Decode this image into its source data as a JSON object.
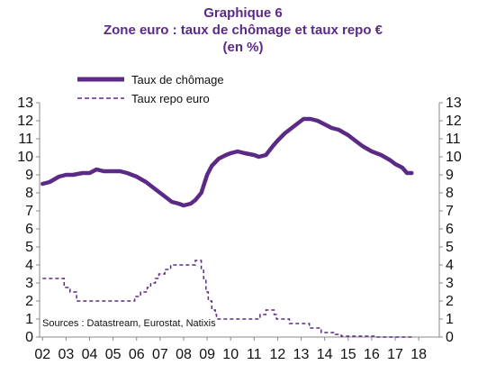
{
  "chart_data": {
    "type": "line",
    "title": "Graphique 6",
    "subtitle": "Zone euro : taux de chômage et taux repo €",
    "unit_note": "(en %)",
    "source": "Sources : Datastream, Eurostat, Natixis",
    "x_ticks": [
      "02",
      "03",
      "04",
      "05",
      "06",
      "07",
      "08",
      "09",
      "10",
      "11",
      "12",
      "13",
      "14",
      "15",
      "16",
      "17",
      "18"
    ],
    "y_ticks": [
      "0",
      "1",
      "2",
      "3",
      "4",
      "5",
      "6",
      "7",
      "8",
      "9",
      "10",
      "11",
      "12",
      "13"
    ],
    "ylim": [
      0,
      13
    ],
    "legend_position": "top-left",
    "grid": false,
    "colors": {
      "title": "#5b2a86",
      "series": "#5b2a86",
      "axis": "#888888"
    },
    "series": [
      {
        "name": "Taux de chômage",
        "style": "solid",
        "points": [
          [
            2002.0,
            8.5
          ],
          [
            2002.3,
            8.6
          ],
          [
            2002.7,
            8.9
          ],
          [
            2003.0,
            9.0
          ],
          [
            2003.3,
            9.0
          ],
          [
            2003.7,
            9.1
          ],
          [
            2004.0,
            9.1
          ],
          [
            2004.3,
            9.3
          ],
          [
            2004.6,
            9.2
          ],
          [
            2005.0,
            9.2
          ],
          [
            2005.3,
            9.2
          ],
          [
            2005.6,
            9.1
          ],
          [
            2006.0,
            8.9
          ],
          [
            2006.4,
            8.6
          ],
          [
            2006.8,
            8.2
          ],
          [
            2007.2,
            7.8
          ],
          [
            2007.5,
            7.5
          ],
          [
            2007.8,
            7.4
          ],
          [
            2008.0,
            7.3
          ],
          [
            2008.3,
            7.4
          ],
          [
            2008.5,
            7.6
          ],
          [
            2008.75,
            8.0
          ],
          [
            2009.0,
            9.0
          ],
          [
            2009.2,
            9.5
          ],
          [
            2009.5,
            9.9
          ],
          [
            2009.8,
            10.1
          ],
          [
            2010.0,
            10.2
          ],
          [
            2010.3,
            10.3
          ],
          [
            2010.6,
            10.2
          ],
          [
            2011.0,
            10.1
          ],
          [
            2011.2,
            10.0
          ],
          [
            2011.5,
            10.1
          ],
          [
            2011.8,
            10.6
          ],
          [
            2012.0,
            10.9
          ],
          [
            2012.3,
            11.3
          ],
          [
            2012.6,
            11.6
          ],
          [
            2012.9,
            11.9
          ],
          [
            2013.1,
            12.1
          ],
          [
            2013.4,
            12.1
          ],
          [
            2013.7,
            12.0
          ],
          [
            2014.0,
            11.8
          ],
          [
            2014.3,
            11.6
          ],
          [
            2014.6,
            11.5
          ],
          [
            2015.0,
            11.2
          ],
          [
            2015.3,
            10.9
          ],
          [
            2015.6,
            10.6
          ],
          [
            2016.0,
            10.3
          ],
          [
            2016.4,
            10.1
          ],
          [
            2016.8,
            9.8
          ],
          [
            2017.0,
            9.6
          ],
          [
            2017.3,
            9.4
          ],
          [
            2017.5,
            9.1
          ],
          [
            2017.7,
            9.1
          ]
        ]
      },
      {
        "name": "Taux repo euro",
        "style": "dashed",
        "points": [
          [
            2002.0,
            3.25
          ],
          [
            2002.92,
            3.25
          ],
          [
            2002.92,
            2.75
          ],
          [
            2003.17,
            2.75
          ],
          [
            2003.17,
            2.5
          ],
          [
            2003.45,
            2.5
          ],
          [
            2003.45,
            2.0
          ],
          [
            2005.92,
            2.0
          ],
          [
            2005.92,
            2.25
          ],
          [
            2006.17,
            2.25
          ],
          [
            2006.17,
            2.5
          ],
          [
            2006.45,
            2.5
          ],
          [
            2006.45,
            2.75
          ],
          [
            2006.6,
            2.75
          ],
          [
            2006.6,
            3.0
          ],
          [
            2006.8,
            3.0
          ],
          [
            2006.8,
            3.25
          ],
          [
            2006.95,
            3.25
          ],
          [
            2006.95,
            3.5
          ],
          [
            2007.2,
            3.5
          ],
          [
            2007.2,
            3.75
          ],
          [
            2007.45,
            3.75
          ],
          [
            2007.45,
            4.0
          ],
          [
            2008.5,
            4.0
          ],
          [
            2008.5,
            4.25
          ],
          [
            2008.75,
            4.25
          ],
          [
            2008.75,
            3.75
          ],
          [
            2008.85,
            3.75
          ],
          [
            2008.85,
            3.25
          ],
          [
            2008.95,
            3.25
          ],
          [
            2008.95,
            2.5
          ],
          [
            2009.05,
            2.5
          ],
          [
            2009.05,
            2.0
          ],
          [
            2009.2,
            2.0
          ],
          [
            2009.2,
            1.5
          ],
          [
            2009.35,
            1.5
          ],
          [
            2009.35,
            1.25
          ],
          [
            2009.4,
            1.25
          ],
          [
            2009.4,
            1.0
          ],
          [
            2011.25,
            1.0
          ],
          [
            2011.25,
            1.25
          ],
          [
            2011.5,
            1.25
          ],
          [
            2011.5,
            1.5
          ],
          [
            2011.85,
            1.5
          ],
          [
            2011.85,
            1.25
          ],
          [
            2011.95,
            1.25
          ],
          [
            2011.95,
            1.0
          ],
          [
            2012.5,
            1.0
          ],
          [
            2012.5,
            0.75
          ],
          [
            2013.35,
            0.75
          ],
          [
            2013.35,
            0.5
          ],
          [
            2013.85,
            0.5
          ],
          [
            2013.85,
            0.25
          ],
          [
            2014.45,
            0.25
          ],
          [
            2014.45,
            0.15
          ],
          [
            2014.7,
            0.15
          ],
          [
            2014.7,
            0.05
          ],
          [
            2016.2,
            0.05
          ],
          [
            2016.2,
            0.0
          ],
          [
            2017.8,
            0.0
          ]
        ]
      }
    ]
  }
}
